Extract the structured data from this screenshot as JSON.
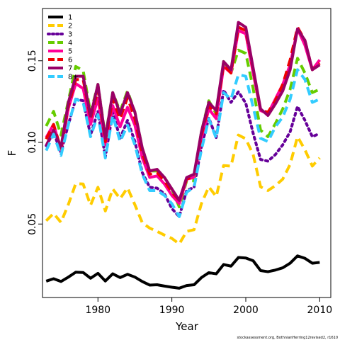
{
  "chart_data": {
    "type": "line",
    "xlabel": "Year",
    "ylabel": "F",
    "xlim": [
      1972.5,
      2011.5
    ],
    "ylim": [
      0.005,
      0.182
    ],
    "x_ticks": [
      "1980",
      "1990",
      "2000",
      "2010"
    ],
    "y_ticks": [
      "0.05",
      "0.10",
      "0.15"
    ],
    "grid": false,
    "legend_position": "top-left",
    "footnote": "stockassessment.org, BothnianHerring12revised2, r1610",
    "x": [
      1973,
      1974,
      1975,
      1976,
      1977,
      1978,
      1979,
      1980,
      1981,
      1982,
      1983,
      1984,
      1985,
      1986,
      1987,
      1988,
      1989,
      1990,
      1991,
      1992,
      1993,
      1994,
      1995,
      1996,
      1997,
      1998,
      1999,
      2000,
      2001,
      2002,
      2003,
      2004,
      2005,
      2006,
      2007,
      2008,
      2009,
      2010
    ],
    "series": [
      {
        "name": "1",
        "color": "#000000",
        "dash": "solid",
        "values": [
          0.015,
          0.0165,
          0.0148,
          0.0175,
          0.0205,
          0.0203,
          0.0168,
          0.0198,
          0.0151,
          0.0195,
          0.0172,
          0.0192,
          0.0175,
          0.0148,
          0.0126,
          0.0128,
          0.012,
          0.0113,
          0.0107,
          0.0123,
          0.0128,
          0.0172,
          0.0202,
          0.0195,
          0.0252,
          0.0242,
          0.0295,
          0.0292,
          0.0275,
          0.0215,
          0.0208,
          0.0218,
          0.0232,
          0.026,
          0.0305,
          0.029,
          0.026,
          0.0265
        ]
      },
      {
        "name": "2",
        "color": "#ffcc00",
        "dash": "dash",
        "values": [
          0.052,
          0.0565,
          0.051,
          0.062,
          0.0748,
          0.0745,
          0.0615,
          0.0725,
          0.058,
          0.0715,
          0.0655,
          0.0722,
          0.0618,
          0.0508,
          0.0475,
          0.0455,
          0.0432,
          0.0412,
          0.0378,
          0.0455,
          0.0465,
          0.0625,
          0.0728,
          0.0668,
          0.0858,
          0.0855,
          0.1045,
          0.1022,
          0.0925,
          0.0728,
          0.0705,
          0.0735,
          0.0775,
          0.0865,
          0.1035,
          0.0955,
          0.0855,
          0.0905
        ]
      },
      {
        "name": "3",
        "color": "#660099",
        "dash": "dot",
        "values": [
          0.098,
          0.106,
          0.094,
          0.111,
          0.1265,
          0.1255,
          0.1045,
          0.119,
          0.091,
          0.1185,
          0.1025,
          0.1135,
          0.1005,
          0.0815,
          0.0725,
          0.072,
          0.0685,
          0.0595,
          0.0545,
          0.0705,
          0.0725,
          0.0975,
          0.115,
          0.103,
          0.132,
          0.1245,
          0.131,
          0.124,
          0.1055,
          0.0895,
          0.0885,
          0.0925,
          0.0985,
          0.1065,
          0.122,
          0.1135,
          0.1035,
          0.1055
        ]
      },
      {
        "name": "4",
        "color": "#66cc00",
        "dash": "dash",
        "values": [
          0.11,
          0.119,
          0.1045,
          0.1255,
          0.1465,
          0.144,
          0.118,
          0.1355,
          0.1035,
          0.1305,
          0.119,
          0.1315,
          0.1185,
          0.0965,
          0.0825,
          0.0825,
          0.0785,
          0.0715,
          0.0605,
          0.0765,
          0.0765,
          0.1065,
          0.1255,
          0.1175,
          0.1495,
          0.1425,
          0.1565,
          0.1545,
          0.133,
          0.1075,
          0.1035,
          0.1115,
          0.1205,
          0.1325,
          0.1515,
          0.1425,
          0.1305,
          0.1325
        ]
      },
      {
        "name": "5",
        "color": "#ff0099",
        "dash": "solid",
        "values": [
          0.103,
          0.111,
          0.0955,
          0.121,
          0.136,
          0.133,
          0.111,
          0.127,
          0.0985,
          0.1225,
          0.1095,
          0.1215,
          0.1105,
          0.0905,
          0.0785,
          0.0795,
          0.0745,
          0.0675,
          0.0625,
          0.0775,
          0.0785,
          0.1025,
          0.1205,
          0.1145,
          0.1465,
          0.1425,
          0.1685,
          0.1665,
          0.1425,
          0.1195,
          0.1175,
          0.1265,
          0.1355,
          0.1475,
          0.1695,
          0.1595,
          0.1445,
          0.1505
        ]
      },
      {
        "name": "6",
        "color": "#ee0000",
        "dash": "dash",
        "values": [
          0.102,
          0.111,
          0.096,
          0.1225,
          0.1385,
          0.1385,
          0.1145,
          0.1325,
          0.1005,
          0.1265,
          0.1145,
          0.1275,
          0.1145,
          0.0935,
          0.0805,
          0.0815,
          0.0765,
          0.0695,
          0.0645,
          0.0775,
          0.0795,
          0.1045,
          0.1225,
          0.1175,
          0.1475,
          0.1425,
          0.1705,
          0.1685,
          0.1445,
          0.1195,
          0.1185,
          0.1255,
          0.1355,
          0.1505,
          0.1705,
          0.1625,
          0.1445,
          0.1485
        ]
      },
      {
        "name": "7",
        "color": "#990066",
        "dash": "solid",
        "values": [
          0.098,
          0.1075,
          0.097,
          0.1245,
          0.1405,
          0.1405,
          0.116,
          0.1355,
          0.1025,
          0.1305,
          0.1175,
          0.1305,
          0.1185,
          0.0965,
          0.0825,
          0.0835,
          0.0785,
          0.0715,
          0.0645,
          0.0785,
          0.0805,
          0.1065,
          0.1245,
          0.1195,
          0.1495,
          0.1445,
          0.1735,
          0.1705,
          0.1455,
          0.1205,
          0.1165,
          0.1235,
          0.1315,
          0.1445,
          0.1695,
          0.1625,
          0.1445,
          0.1475
        ]
      },
      {
        "name": "8+",
        "color": "#33ccff",
        "dash": "dash",
        "values": [
          0.095,
          0.105,
          0.092,
          0.111,
          0.1265,
          0.1245,
          0.1035,
          0.117,
          0.0905,
          0.1165,
          0.1005,
          0.1105,
          0.0985,
          0.0805,
          0.0705,
          0.0705,
          0.0675,
          0.0625,
          0.0545,
          0.0695,
          0.0725,
          0.0955,
          0.1145,
          0.1025,
          0.1305,
          0.1265,
          0.1415,
          0.1405,
          0.1215,
          0.1025,
          0.1005,
          0.1095,
          0.1155,
          0.1265,
          0.1445,
          0.1385,
          0.1245,
          0.1265
        ]
      }
    ]
  }
}
